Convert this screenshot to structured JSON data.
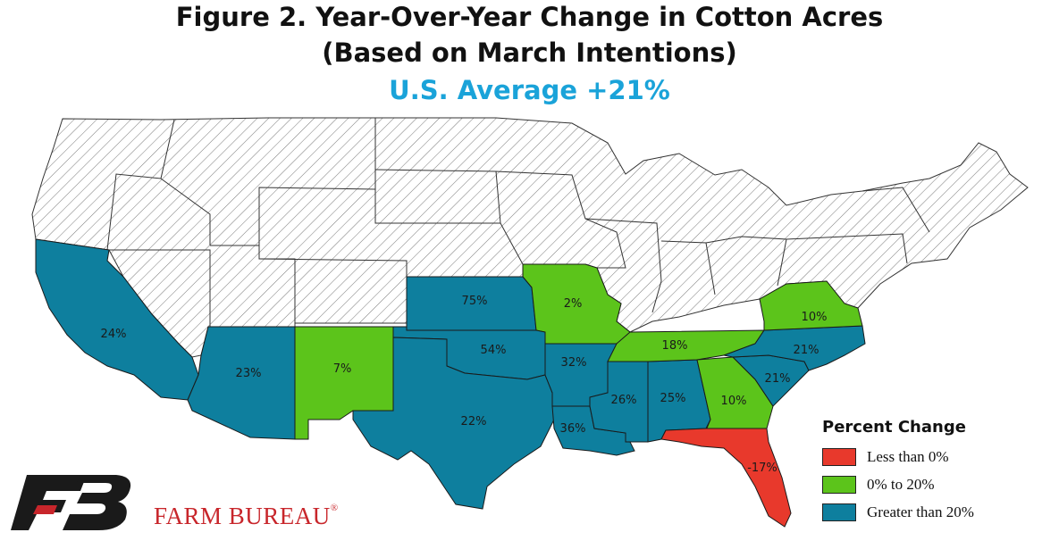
{
  "title": {
    "line1": "Figure 2. Year-Over-Year Change in Cotton Acres",
    "line2": "(Based on March Intentions)",
    "line3": "U.S. Average +21%"
  },
  "colors": {
    "less_than_0": "#e8392c",
    "zero_to_20": "#5cc41b",
    "greater_than_20": "#0e7f9e",
    "no_data": "#ffffff",
    "brand": "#c8262b",
    "subtitle": "#1aa3d9"
  },
  "legend": {
    "title": "Percent Change",
    "items": [
      {
        "label": "Less than 0%",
        "category": "less_than_0"
      },
      {
        "label": "0% to 20%",
        "category": "zero_to_20"
      },
      {
        "label": "Greater than 20%",
        "category": "greater_than_20"
      }
    ]
  },
  "states": [
    {
      "state": "California",
      "value": "24%",
      "category": "greater_than_20"
    },
    {
      "state": "Arizona",
      "value": "23%",
      "category": "greater_than_20"
    },
    {
      "state": "New Mexico",
      "value": "7%",
      "category": "zero_to_20"
    },
    {
      "state": "Texas",
      "value": "22%",
      "category": "greater_than_20"
    },
    {
      "state": "Oklahoma",
      "value": "54%",
      "category": "greater_than_20"
    },
    {
      "state": "Kansas",
      "value": "75%",
      "category": "greater_than_20"
    },
    {
      "state": "Missouri",
      "value": "2%",
      "category": "zero_to_20"
    },
    {
      "state": "Arkansas",
      "value": "32%",
      "category": "greater_than_20"
    },
    {
      "state": "Louisiana",
      "value": "36%",
      "category": "greater_than_20"
    },
    {
      "state": "Mississippi",
      "value": "26%",
      "category": "greater_than_20"
    },
    {
      "state": "Alabama",
      "value": "25%",
      "category": "greater_than_20"
    },
    {
      "state": "Tennessee",
      "value": "18%",
      "category": "zero_to_20"
    },
    {
      "state": "Georgia",
      "value": "10%",
      "category": "zero_to_20"
    },
    {
      "state": "Florida",
      "value": "-17%",
      "category": "less_than_0"
    },
    {
      "state": "South Carolina",
      "value": "21%",
      "category": "greater_than_20"
    },
    {
      "state": "North Carolina",
      "value": "21%",
      "category": "greater_than_20"
    },
    {
      "state": "Virginia",
      "value": "10%",
      "category": "zero_to_20"
    }
  ],
  "brand": {
    "name": "FARM BUREAU",
    "mark": "®"
  }
}
